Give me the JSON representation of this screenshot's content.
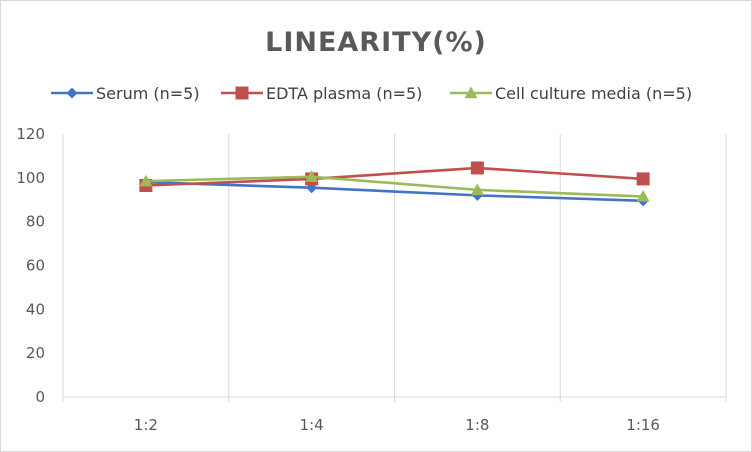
{
  "chart_data": {
    "type": "line",
    "title": "LINEARITY(%)",
    "categories": [
      "1:2",
      "1:4",
      "1:8",
      "1:16"
    ],
    "ylim": [
      0,
      120
    ],
    "yticks": [
      0,
      20,
      40,
      60,
      80,
      100,
      120
    ],
    "grid": "vertical",
    "legend_position": "top",
    "series": [
      {
        "name": "Serum (n=5)",
        "values": [
          98,
          95.5,
          92,
          89.5
        ],
        "color": "#4472c4",
        "marker": "diamond"
      },
      {
        "name": "EDTA plasma (n=5)",
        "values": [
          96.5,
          99.5,
          104.5,
          99.5
        ],
        "color": "#c0504d",
        "marker": "square"
      },
      {
        "name": "Cell culture media (n=5)",
        "values": [
          98.5,
          100.5,
          94.5,
          91.5
        ],
        "color": "#9bbb59",
        "marker": "triangle"
      }
    ]
  }
}
